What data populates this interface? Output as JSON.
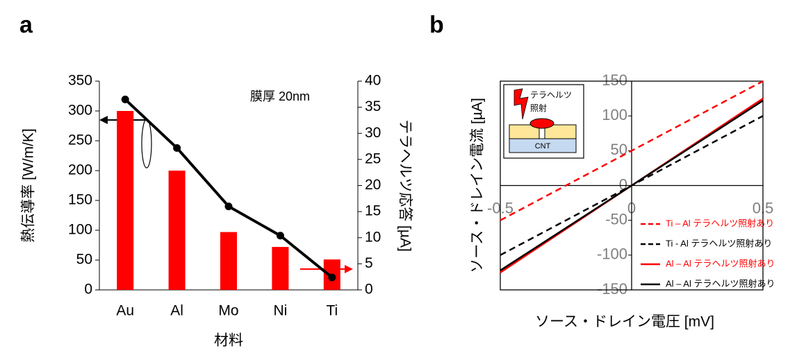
{
  "chart_data": [
    {
      "type": "bar",
      "label": "a",
      "categories": [
        "Au",
        "Al",
        "Mo",
        "Ni",
        "Ti"
      ],
      "series": [
        {
          "color": "#ff0000",
          "values": [
            300,
            200,
            97,
            72,
            51
          ]
        },
        {
          "color": "#000000",
          "type": "line",
          "axis": "y2",
          "values": [
            36.5,
            27.2,
            16,
            10.4,
            2.4
          ]
        }
      ],
      "annotation": "膜厚 20nm",
      "xlabel": "材料",
      "ylabel": "熱伝導率 [W/m/K]",
      "y2label": "テラヘルツ応答 [µA]",
      "ylim": [
        0,
        350
      ],
      "yticks": [
        0,
        50,
        100,
        150,
        200,
        250,
        300,
        350
      ],
      "y2lim": [
        0,
        40
      ],
      "y2ticks": [
        0,
        5,
        10,
        15,
        20,
        25,
        30,
        35,
        40
      ]
    },
    {
      "type": "line",
      "label": "b",
      "x": [
        -0.5,
        0,
        0.5
      ],
      "series": [
        {
          "name": "Ti – Al テラヘルツ照射あり",
          "color": "#ff0000",
          "dashed": true,
          "values": [
            -50,
            50,
            150
          ]
        },
        {
          "name": "Ti - Al  テラヘルツ照射あり",
          "color": "#000000",
          "dashed": true,
          "values": [
            -100,
            0,
            100
          ]
        },
        {
          "name": "Al – Al テラヘルツ照射あり",
          "color": "#ff0000",
          "dashed": false,
          "values": [
            -125,
            0,
            125
          ]
        },
        {
          "name": "Al – Al テラヘルツ照射あり",
          "color": "#000000",
          "dashed": false,
          "values": [
            -122,
            0,
            122
          ]
        }
      ],
      "inset_labels": [
        "テラヘルツ",
        "照射",
        "CNT"
      ],
      "xlabel": "ソース・ドレイン電圧  [mV]",
      "ylabel": "ソース・ドレイン電流  [µA]",
      "xlim": [
        -0.5,
        0.5
      ],
      "xticks": [
        -0.5,
        0,
        0.5
      ],
      "ylim": [
        -150,
        150
      ],
      "yticks": [
        -150,
        -100,
        -50,
        0,
        50,
        100,
        150
      ],
      "legend": "right"
    }
  ]
}
